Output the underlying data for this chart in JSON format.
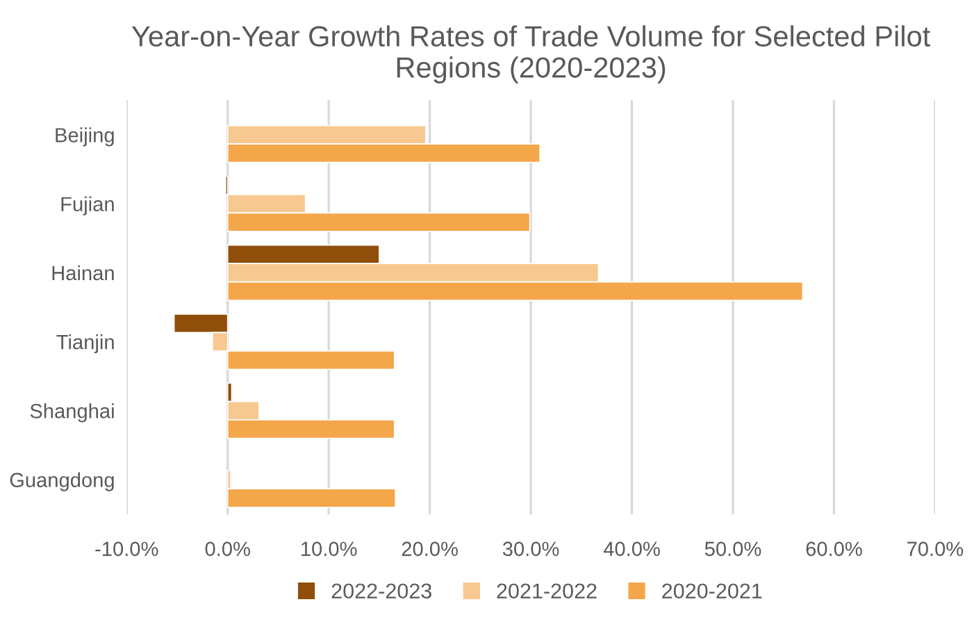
{
  "chart_data": {
    "type": "bar",
    "orientation": "horizontal",
    "title": "Year-on-Year Growth Rates of Trade Volume for Selected Pilot Regions (2020-2023)",
    "categories": [
      "Beijing",
      "Fujian",
      "Hainan",
      "Tianjin",
      "Shanghai",
      "Guangdong"
    ],
    "series": [
      {
        "name": "2022-2023",
        "color": "#8f4e0a",
        "values": [
          null,
          -0.2,
          15.0,
          -5.3,
          0.4,
          null
        ]
      },
      {
        "name": "2021-2022",
        "color": "#f7c890",
        "values": [
          19.6,
          7.7,
          36.7,
          -1.5,
          3.1,
          0.3
        ]
      },
      {
        "name": "2020-2021",
        "color": "#f4a64a",
        "values": [
          30.9,
          29.9,
          56.9,
          16.5,
          16.5,
          16.6
        ]
      }
    ],
    "xlim": [
      -10,
      70
    ],
    "xticks": [
      {
        "value": -10,
        "label": "-10.0%"
      },
      {
        "value": 0,
        "label": "0.0%"
      },
      {
        "value": 10,
        "label": "10.0%"
      },
      {
        "value": 20,
        "label": "20.0%"
      },
      {
        "value": 30,
        "label": "30.0%"
      },
      {
        "value": 40,
        "label": "40.0%"
      },
      {
        "value": 50,
        "label": "50.0%"
      },
      {
        "value": 60,
        "label": "60.0%"
      },
      {
        "value": 70,
        "label": "70.0%"
      }
    ],
    "grid": "x",
    "legend": "bottom"
  }
}
